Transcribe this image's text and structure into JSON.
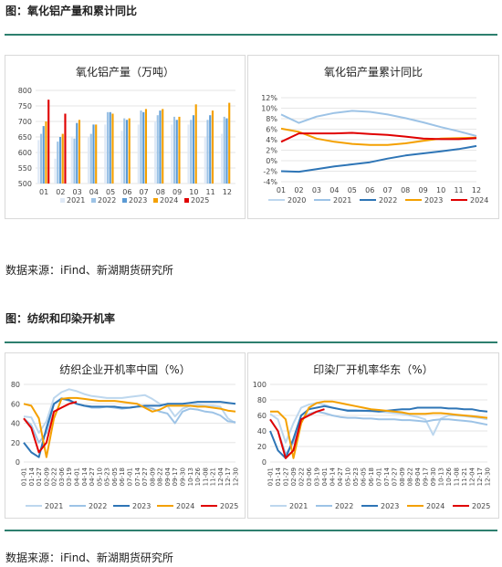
{
  "section1": {
    "title": "图：氧化铝产量和累计同比",
    "source": "数据来源：iFind、新湖期货研究所"
  },
  "section2": {
    "title": "图：纺织和印染开机率",
    "source": "数据来源：iFind、新湖期货研究所"
  },
  "colors": {
    "s2020": "#bdd7ee",
    "s2021": "#9dc3e6",
    "s2022": "#2e75b6",
    "s2023": "#f4a000",
    "s2024": "#e00000",
    "bar2021": "#dfe9f6",
    "bar2022": "#9dc3e6",
    "bar2023": "#5b9bd5",
    "bar2024": "#f4a000",
    "bar2025": "#e00000",
    "rule": "#2d7f6e"
  },
  "chart_data": [
    {
      "id": "c1",
      "type": "bar",
      "title": "氧化铝产量（万吨）",
      "categories": [
        "01",
        "02",
        "03",
        "04",
        "05",
        "06",
        "07",
        "08",
        "09",
        "10",
        "11",
        "12"
      ],
      "ylim": [
        500,
        800
      ],
      "yticks": [
        500,
        550,
        600,
        650,
        700,
        750,
        800
      ],
      "series": [
        {
          "name": "2021",
          "color": "bar2021",
          "values": [
            640,
            580,
            650,
            650,
            690,
            670,
            690,
            700,
            690,
            690,
            650,
            660
          ]
        },
        {
          "name": "2022",
          "color": "bar2022",
          "values": [
            660,
            635,
            645,
            660,
            730,
            710,
            735,
            720,
            715,
            705,
            705,
            715
          ]
        },
        {
          "name": "2023",
          "color": "bar2023",
          "values": [
            685,
            650,
            695,
            690,
            730,
            705,
            730,
            735,
            705,
            720,
            720,
            710
          ]
        },
        {
          "name": "2024",
          "color": "bar2024",
          "values": [
            700,
            660,
            705,
            690,
            725,
            710,
            740,
            740,
            715,
            755,
            735,
            760
          ]
        },
        {
          "name": "2025",
          "color": "bar2025",
          "values": [
            770,
            725,
            null,
            null,
            null,
            null,
            null,
            null,
            null,
            null,
            null,
            null
          ]
        }
      ]
    },
    {
      "id": "c2",
      "type": "line",
      "title": "氧化铝产量累计同比",
      "categories": [
        "01",
        "02",
        "03",
        "04",
        "05",
        "06",
        "07",
        "08",
        "09",
        "10",
        "11",
        "12"
      ],
      "ylim": [
        -4,
        12
      ],
      "yticks": [
        "-4%",
        "-2%",
        "0%",
        "2%",
        "4%",
        "6%",
        "8%",
        "10%",
        "12%"
      ],
      "ytick_values": [
        -4,
        -2,
        0,
        2,
        4,
        6,
        8,
        10,
        12
      ],
      "series": [
        {
          "name": "2020",
          "color": "s2020",
          "values": [
            null,
            null,
            null,
            null,
            null,
            null,
            null,
            null,
            null,
            null,
            null,
            null
          ]
        },
        {
          "name": "2021",
          "color": "s2021",
          "values": [
            8.8,
            7.2,
            8.4,
            9.1,
            9.5,
            9.3,
            8.8,
            8.1,
            7.3,
            6.4,
            5.6,
            4.7
          ]
        },
        {
          "name": "2022",
          "color": "s2022",
          "values": [
            -2.0,
            -2.1,
            -1.6,
            -1.1,
            -0.7,
            -0.3,
            0.4,
            1.0,
            1.4,
            1.8,
            2.2,
            2.8
          ]
        },
        {
          "name": "2023",
          "color": "s2023",
          "values": [
            6.1,
            5.5,
            4.2,
            3.6,
            3.2,
            3.0,
            3.0,
            3.3,
            3.8,
            4.2,
            4.3,
            4.4
          ]
        },
        {
          "name": "2024",
          "color": "s2024",
          "values": [
            3.6,
            5.2,
            5.2,
            5.2,
            5.3,
            5.1,
            4.9,
            4.6,
            4.2,
            4.1,
            4.1,
            4.3
          ]
        }
      ]
    },
    {
      "id": "c3",
      "type": "line",
      "title": "纺织企业开机率中国（%）",
      "ylim": [
        0,
        80
      ],
      "yticks": [
        0,
        20,
        40,
        60,
        80
      ],
      "xticks": [
        "01-01",
        "01-14",
        "01-27",
        "02-09",
        "02-22",
        "03-06",
        "03-19",
        "04-01",
        "04-14",
        "04-27",
        "05-10",
        "05-23",
        "06-05",
        "06-18",
        "07-01",
        "07-14",
        "07-27",
        "08-09",
        "08-22",
        "09-04",
        "09-17",
        "09-30",
        "10-13",
        "10-26",
        "11-08",
        "11-21",
        "12-04",
        "12-17",
        "12-30"
      ],
      "series": [
        {
          "name": "2021",
          "color": "s2020",
          "values": [
            47,
            46,
            30,
            42,
            66,
            72,
            75,
            73,
            70,
            68,
            67,
            66,
            66,
            66,
            67,
            68,
            69,
            65,
            60,
            58,
            47,
            55,
            58,
            59,
            58,
            58,
            57,
            45,
            40
          ]
        },
        {
          "name": "2022",
          "color": "s2021",
          "values": [
            45,
            38,
            20,
            30,
            60,
            66,
            63,
            60,
            58,
            56,
            56,
            57,
            56,
            55,
            56,
            57,
            57,
            55,
            52,
            50,
            40,
            52,
            55,
            54,
            52,
            51,
            48,
            42,
            41
          ]
        },
        {
          "name": "2023",
          "color": "s2022",
          "values": [
            20,
            10,
            5,
            35,
            60,
            65,
            64,
            60,
            58,
            57,
            57,
            57,
            57,
            56,
            56,
            57,
            58,
            58,
            58,
            60,
            60,
            60,
            61,
            62,
            62,
            62,
            62,
            61,
            60
          ]
        },
        {
          "name": "2024",
          "color": "s2023",
          "values": [
            60,
            58,
            45,
            5,
            45,
            65,
            66,
            66,
            65,
            64,
            63,
            63,
            63,
            62,
            61,
            60,
            56,
            52,
            54,
            58,
            58,
            58,
            58,
            57,
            57,
            56,
            55,
            53,
            52
          ]
        },
        {
          "name": "2025",
          "color": "s2024",
          "values": [
            45,
            35,
            10,
            20,
            52,
            56,
            60,
            62,
            null,
            null,
            null,
            null,
            null,
            null,
            null,
            null,
            null,
            null,
            null,
            null,
            null,
            null,
            null,
            null,
            null,
            null,
            null,
            null,
            null
          ]
        }
      ]
    },
    {
      "id": "c4",
      "type": "line",
      "title": "印染厂开机率华东（%）",
      "ylim": [
        0,
        100
      ],
      "yticks": [
        0,
        20,
        40,
        60,
        80,
        100
      ],
      "xticks": [
        "01-01",
        "01-14",
        "01-27",
        "02-09",
        "02-22",
        "03-06",
        "03-19",
        "04-01",
        "04-14",
        "04-27",
        "05-10",
        "05-23",
        "06-05",
        "06-18",
        "07-01",
        "07-14",
        "07-27",
        "08-09",
        "08-22",
        "09-04",
        "09-17",
        "09-30",
        "10-13",
        "10-26",
        "11-08",
        "11-21",
        "12-04",
        "12-17",
        "12-30"
      ],
      "series": [
        {
          "name": "2021",
          "color": "s2020",
          "values": [
            62,
            55,
            25,
            50,
            70,
            74,
            76,
            74,
            70,
            68,
            67,
            67,
            66,
            65,
            65,
            64,
            63,
            62,
            60,
            58,
            55,
            35,
            56,
            60,
            60,
            59,
            58,
            57,
            55
          ]
        },
        {
          "name": "2022",
          "color": "s2021",
          "values": [
            55,
            40,
            10,
            25,
            55,
            62,
            65,
            63,
            60,
            58,
            57,
            57,
            56,
            56,
            55,
            55,
            55,
            54,
            54,
            53,
            52,
            54,
            55,
            55,
            54,
            53,
            52,
            50,
            48
          ]
        },
        {
          "name": "2023",
          "color": "s2022",
          "values": [
            40,
            15,
            5,
            30,
            60,
            68,
            70,
            72,
            70,
            68,
            66,
            66,
            66,
            66,
            65,
            66,
            67,
            68,
            68,
            70,
            70,
            70,
            70,
            69,
            69,
            68,
            68,
            66,
            65
          ]
        },
        {
          "name": "2024",
          "color": "s2023",
          "values": [
            65,
            65,
            55,
            5,
            50,
            70,
            76,
            78,
            78,
            76,
            74,
            72,
            70,
            68,
            67,
            66,
            65,
            64,
            62,
            62,
            62,
            63,
            63,
            62,
            61,
            60,
            59,
            58,
            57
          ]
        },
        {
          "name": "2025",
          "color": "s2024",
          "values": [
            55,
            40,
            5,
            15,
            55,
            60,
            65,
            68,
            null,
            null,
            null,
            null,
            null,
            null,
            null,
            null,
            null,
            null,
            null,
            null,
            null,
            null,
            null,
            null,
            null,
            null,
            null,
            null,
            null
          ]
        }
      ]
    }
  ]
}
